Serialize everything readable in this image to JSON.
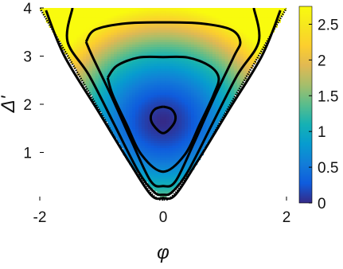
{
  "chart_data": {
    "type": "heatmap",
    "title": "",
    "xlabel": "φ",
    "ylabel": "Δ'",
    "xlim": [
      -2,
      2
    ],
    "ylim": [
      0,
      4
    ],
    "xticks": [
      -2,
      0,
      2
    ],
    "yticks": [
      1,
      2,
      3,
      4
    ],
    "xtick_labels": [
      "-2",
      "0",
      "2"
    ],
    "ytick_labels": [
      "1",
      "2",
      "3",
      "4"
    ],
    "colormap": "parula",
    "colorbar": {
      "range": [
        0,
        2.75
      ],
      "ticks": [
        0,
        0.5,
        1,
        1.5,
        2,
        2.5
      ],
      "tick_labels": [
        "0",
        "0.5",
        "1",
        "1.5",
        "2",
        "2.5"
      ]
    },
    "minimum": {
      "x": 0,
      "y": 1.65,
      "value": 0
    },
    "domain_boundary": {
      "description": "Region lower edge",
      "points": [
        [
          -2,
          4
        ],
        [
          -1.5,
          2.9
        ],
        [
          -1,
          1.8
        ],
        [
          -0.5,
          0.7
        ],
        [
          0,
          0
        ],
        [
          0.5,
          0.7
        ],
        [
          1,
          1.8
        ],
        [
          1.5,
          2.9
        ],
        [
          2,
          4
        ]
      ]
    },
    "contours": [
      {
        "level": 0.15,
        "points": [
          [
            0,
            1.95
          ],
          [
            0.13,
            1.9
          ],
          [
            0.2,
            1.75
          ],
          [
            0.16,
            1.57
          ],
          [
            0,
            1.4
          ],
          [
            -0.16,
            1.57
          ],
          [
            -0.2,
            1.75
          ],
          [
            -0.13,
            1.9
          ],
          [
            0,
            1.95
          ]
        ]
      },
      {
        "level": 0.65,
        "points": [
          [
            -0.9,
            2.55
          ],
          [
            -0.75,
            2.8
          ],
          [
            -0.4,
            2.97
          ],
          [
            0,
            2.98
          ],
          [
            0.4,
            2.97
          ],
          [
            0.75,
            2.8
          ],
          [
            0.9,
            2.55
          ],
          [
            0.82,
            2.2
          ],
          [
            0.6,
            1.6
          ],
          [
            0.35,
            0.95
          ],
          [
            0,
            0.6
          ],
          [
            -0.35,
            0.95
          ],
          [
            -0.6,
            1.6
          ],
          [
            -0.82,
            2.2
          ],
          [
            -0.9,
            2.55
          ]
        ]
      },
      {
        "level": 1.05,
        "points": [
          [
            -1.25,
            3.3
          ],
          [
            -1.1,
            3.55
          ],
          [
            -0.6,
            3.68
          ],
          [
            0,
            3.7
          ],
          [
            0.6,
            3.68
          ],
          [
            1.1,
            3.55
          ],
          [
            1.25,
            3.3
          ],
          [
            1.15,
            3.0
          ],
          [
            0.85,
            2.2
          ],
          [
            0.5,
            1.2
          ],
          [
            0.2,
            0.4
          ],
          [
            0,
            0.3
          ],
          [
            -0.2,
            0.4
          ],
          [
            -0.5,
            1.2
          ],
          [
            -0.85,
            2.2
          ],
          [
            -1.15,
            3.0
          ],
          [
            -1.25,
            3.3
          ]
        ]
      },
      {
        "level": 1.6,
        "points": [
          [
            -1.47,
            4
          ],
          [
            -1.55,
            3.3
          ],
          [
            -1.2,
            2.6
          ],
          [
            -0.8,
            1.6
          ],
          [
            -0.4,
            0.6
          ],
          [
            -0.15,
            0.18
          ],
          [
            0,
            0.12
          ],
          [
            0.15,
            0.18
          ],
          [
            0.4,
            0.6
          ],
          [
            0.8,
            1.6
          ],
          [
            1.2,
            2.6
          ],
          [
            1.55,
            3.3
          ],
          [
            1.47,
            4
          ]
        ]
      },
      {
        "level": 2.1,
        "points": [
          [
            -1.9,
            3.95
          ],
          [
            -1.6,
            3.0
          ],
          [
            -1.05,
            1.85
          ],
          [
            -0.55,
            0.8
          ],
          [
            -0.2,
            0.12
          ],
          [
            0,
            0.05
          ],
          [
            0.2,
            0.12
          ],
          [
            0.55,
            0.8
          ],
          [
            1.05,
            1.85
          ],
          [
            1.6,
            3.0
          ],
          [
            1.9,
            3.95
          ]
        ]
      }
    ]
  }
}
